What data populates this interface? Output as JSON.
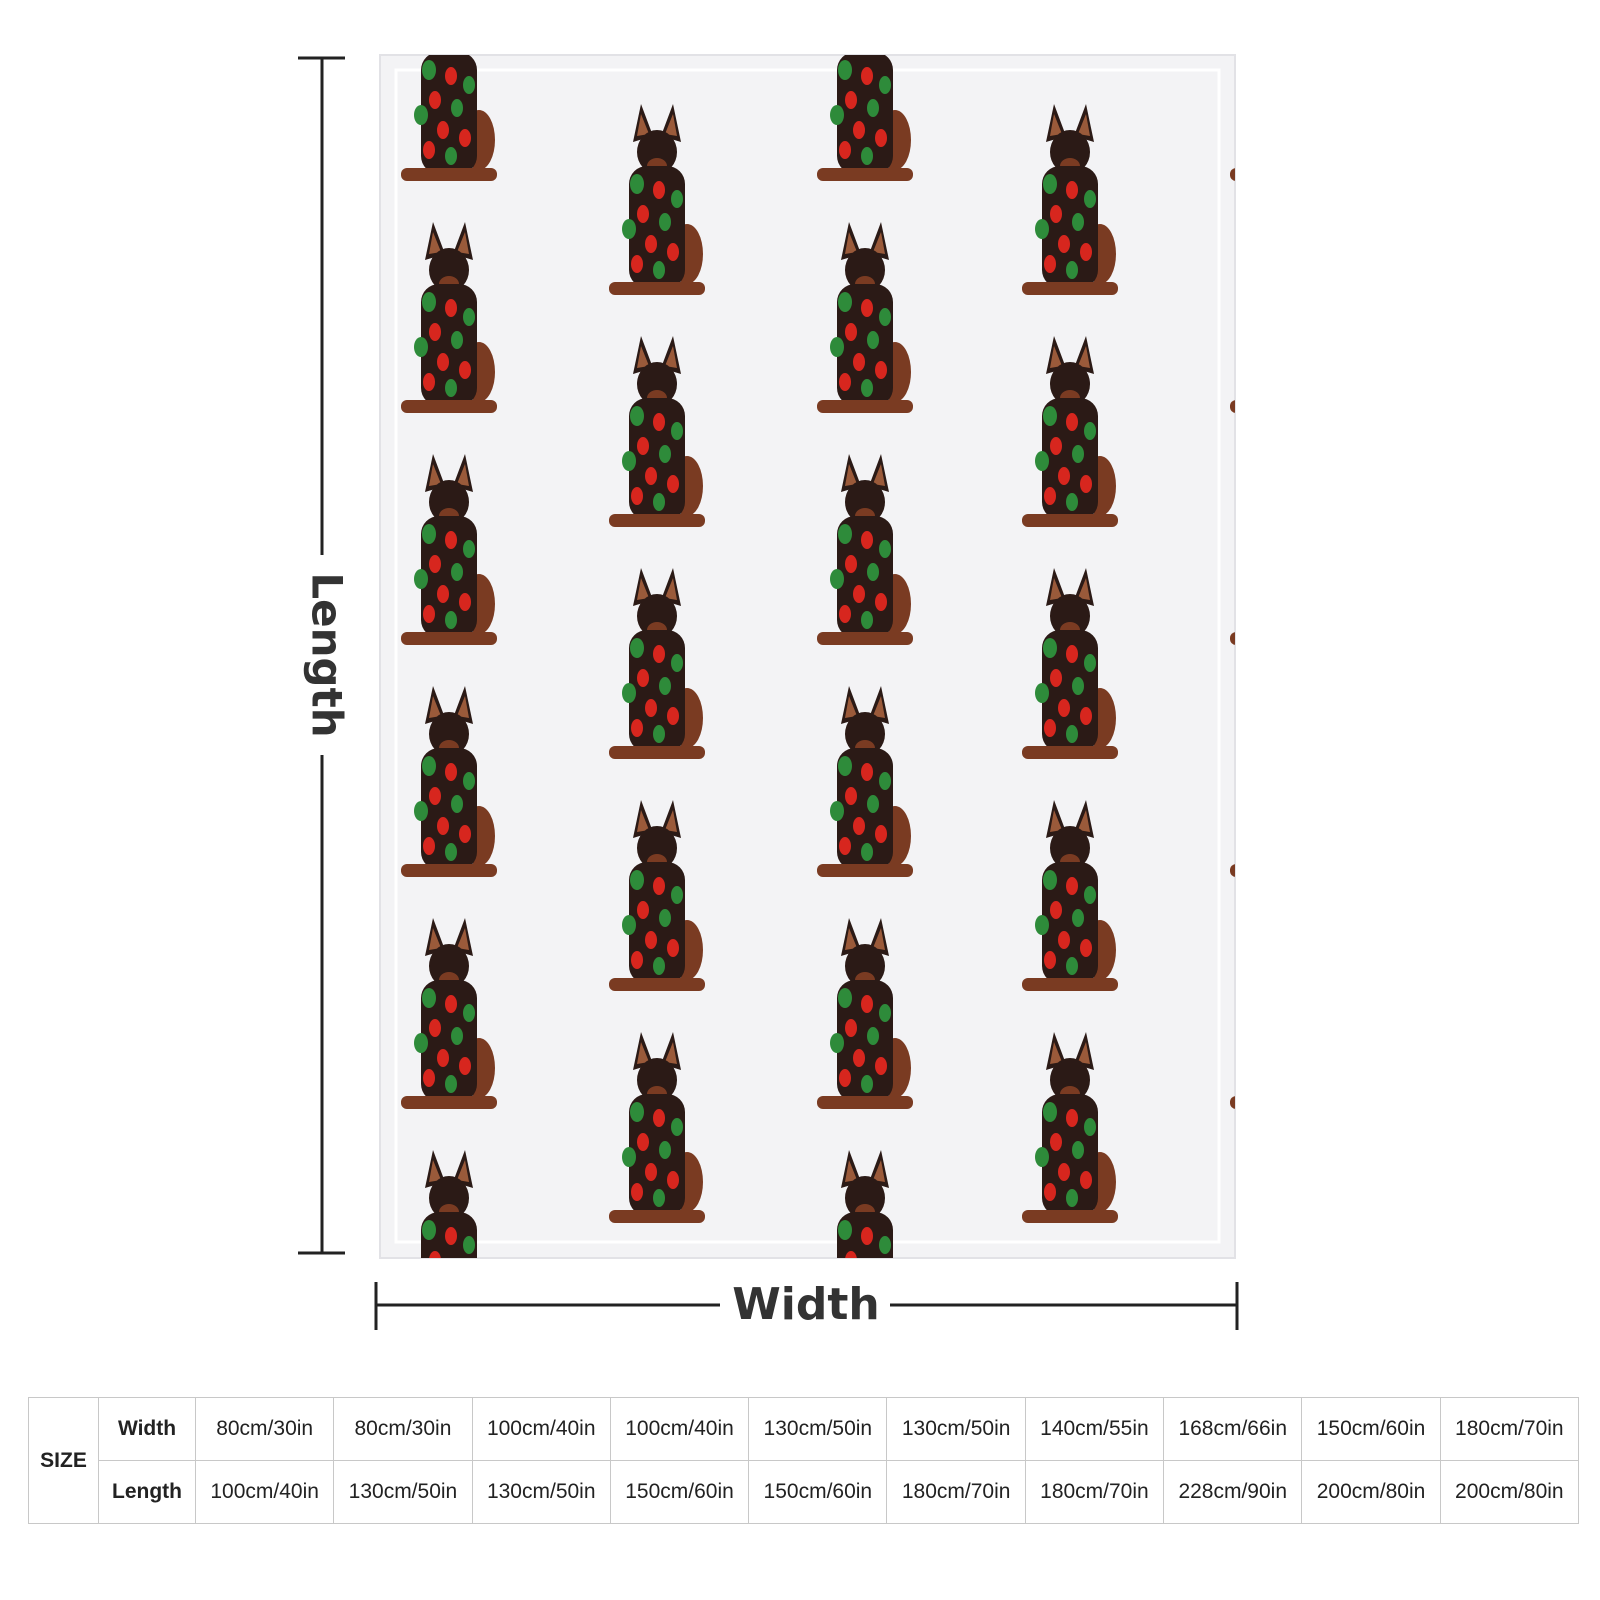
{
  "dimensions": {
    "length_label": "Length",
    "width_label": "Width"
  },
  "table": {
    "corner": "SIZE",
    "rows": [
      {
        "label": "Width",
        "cells": [
          "80cm/30in",
          "80cm/30in",
          "100cm/40in",
          "100cm/40in",
          "130cm/50in",
          "130cm/50in",
          "140cm/55in",
          "168cm/66in",
          "150cm/60in",
          "180cm/70in"
        ]
      },
      {
        "label": "Length",
        "cells": [
          "100cm/40in",
          "130cm/50in",
          "130cm/50in",
          "150cm/60in",
          "150cm/60in",
          "180cm/70in",
          "180cm/70in",
          "228cm/90in",
          "200cm/80in",
          "200cm/80in"
        ]
      }
    ]
  }
}
